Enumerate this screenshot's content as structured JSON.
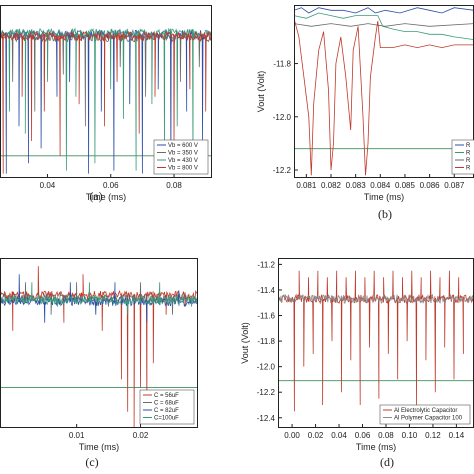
{
  "chart_data": [
    {
      "panel": "(a)",
      "type": "line",
      "xlabel": "Time (ms)",
      "ylabel": "",
      "xlim": [
        0.025,
        0.092
      ],
      "ylim": [
        -12.25,
        -11.08
      ],
      "xticks": [
        0.04,
        0.06,
        0.08
      ],
      "yticks": [],
      "legend_position": "bottom-right",
      "reference_y": -12.1,
      "series": [
        {
          "name": "Vb = 600 V",
          "color": "#2b4ea8",
          "base": -11.28,
          "spikes": [
            [
              0.027,
              -12.22
            ],
            [
              0.031,
              -11.9
            ],
            [
              0.034,
              -12.15
            ],
            [
              0.038,
              -12.05
            ],
            [
              0.043,
              -11.7
            ],
            [
              0.047,
              -11.6
            ],
            [
              0.053,
              -12.22
            ],
            [
              0.057,
              -11.8
            ],
            [
              0.061,
              -12.2
            ],
            [
              0.066,
              -11.75
            ],
            [
              0.07,
              -12.22
            ],
            [
              0.075,
              -11.65
            ],
            [
              0.079,
              -12.18
            ],
            [
              0.084,
              -11.8
            ],
            [
              0.089,
              -12.0
            ]
          ]
        },
        {
          "name": "Vb = 350 V",
          "color": "#6a6a6a",
          "base": -11.3,
          "spikes": [
            [
              0.029,
              -11.6
            ],
            [
              0.036,
              -11.8
            ],
            [
              0.045,
              -11.55
            ],
            [
              0.052,
              -11.9
            ],
            [
              0.063,
              -11.5
            ],
            [
              0.071,
              -11.7
            ],
            [
              0.082,
              -11.6
            ],
            [
              0.088,
              -11.5
            ]
          ]
        },
        {
          "name": "Vb = 430 V",
          "color": "#3a9a78",
          "base": -11.27,
          "spikes": [
            [
              0.028,
              -11.8
            ],
            [
              0.033,
              -11.95
            ],
            [
              0.04,
              -11.6
            ],
            [
              0.046,
              -12.2
            ],
            [
              0.049,
              -11.7
            ],
            [
              0.055,
              -12.15
            ],
            [
              0.06,
              -11.65
            ],
            [
              0.064,
              -11.85
            ],
            [
              0.068,
              -12.2
            ],
            [
              0.073,
              -11.75
            ],
            [
              0.077,
              -12.1
            ],
            [
              0.081,
              -11.9
            ],
            [
              0.086,
              -12.2
            ]
          ]
        },
        {
          "name": "Vb = 800 V",
          "color": "#c0392b",
          "base": -11.29,
          "spikes": [
            [
              0.026,
              -12.22
            ],
            [
              0.032,
              -11.7
            ],
            [
              0.035,
              -12.0
            ],
            [
              0.039,
              -11.8
            ],
            [
              0.044,
              -12.1
            ],
            [
              0.05,
              -11.75
            ],
            [
              0.058,
              -11.9
            ],
            [
              0.062,
              -11.6
            ],
            [
              0.069,
              -11.95
            ],
            [
              0.074,
              -11.7
            ],
            [
              0.08,
              -12.05
            ],
            [
              0.085,
              -11.65
            ],
            [
              0.09,
              -11.8
            ]
          ]
        }
      ]
    },
    {
      "panel": "(b)",
      "type": "line",
      "xlabel": "Time (ms)",
      "ylabel": "Vout (Volt)",
      "xlim": [
        0.0805,
        0.0878
      ],
      "ylim": [
        -12.23,
        -11.58
      ],
      "xticks": [
        0.081,
        0.082,
        0.083,
        0.084,
        0.085,
        0.086,
        0.087
      ],
      "yticks": [
        -11.8,
        -12.0,
        -12.2
      ],
      "legend_position": "bottom-right",
      "legend_entries": [
        "R",
        "R",
        "R",
        "R"
      ],
      "reference_y": -12.12,
      "series": [
        {
          "name": "R",
          "color": "#2b4ea8",
          "points": [
            [
              0.0805,
              -11.6
            ],
            [
              0.0808,
              -11.59
            ],
            [
              0.0811,
              -11.61
            ],
            [
              0.0815,
              -11.59
            ],
            [
              0.082,
              -11.6
            ],
            [
              0.0825,
              -11.6
            ],
            [
              0.083,
              -11.61
            ],
            [
              0.0835,
              -11.59
            ],
            [
              0.0838,
              -11.61
            ],
            [
              0.0842,
              -11.6
            ],
            [
              0.0848,
              -11.61
            ],
            [
              0.0855,
              -11.59
            ],
            [
              0.086,
              -11.6
            ],
            [
              0.0865,
              -11.61
            ],
            [
              0.087,
              -11.59
            ],
            [
              0.0878,
              -11.6
            ]
          ]
        },
        {
          "name": "R",
          "color": "#3a9a78",
          "points": [
            [
              0.0805,
              -11.62
            ],
            [
              0.081,
              -11.63
            ],
            [
              0.0815,
              -11.61
            ],
            [
              0.082,
              -11.62
            ],
            [
              0.0825,
              -11.63
            ],
            [
              0.083,
              -11.62
            ],
            [
              0.0835,
              -11.62
            ],
            [
              0.0839,
              -11.62
            ],
            [
              0.0841,
              -11.66
            ],
            [
              0.0845,
              -11.67
            ],
            [
              0.085,
              -11.68
            ],
            [
              0.0855,
              -11.68
            ],
            [
              0.086,
              -11.69
            ],
            [
              0.0865,
              -11.69
            ],
            [
              0.087,
              -11.7
            ],
            [
              0.0878,
              -11.71
            ]
          ]
        },
        {
          "name": "R",
          "color": "#6a6a6a",
          "points": [
            [
              0.0805,
              -11.65
            ],
            [
              0.0812,
              -11.66
            ],
            [
              0.082,
              -11.65
            ],
            [
              0.0828,
              -11.66
            ],
            [
              0.0835,
              -11.65
            ],
            [
              0.0842,
              -11.66
            ],
            [
              0.085,
              -11.65
            ],
            [
              0.086,
              -11.66
            ],
            [
              0.0878,
              -11.65
            ]
          ]
        },
        {
          "name": "R",
          "color": "#c0392b",
          "points": [
            [
              0.0805,
              -11.63
            ],
            [
              0.0807,
              -11.7
            ],
            [
              0.0809,
              -11.85
            ],
            [
              0.0811,
              -12.0
            ],
            [
              0.0812,
              -12.22
            ],
            [
              0.0813,
              -11.95
            ],
            [
              0.0815,
              -11.75
            ],
            [
              0.0817,
              -11.68
            ],
            [
              0.0819,
              -11.9
            ],
            [
              0.082,
              -12.2
            ],
            [
              0.0821,
              -12.1
            ],
            [
              0.0822,
              -11.8
            ],
            [
              0.0824,
              -11.7
            ],
            [
              0.0826,
              -11.85
            ],
            [
              0.0828,
              -12.05
            ],
            [
              0.0829,
              -11.75
            ],
            [
              0.0831,
              -11.66
            ],
            [
              0.0833,
              -12.0
            ],
            [
              0.0834,
              -12.22
            ],
            [
              0.0835,
              -12.1
            ],
            [
              0.0836,
              -11.85
            ],
            [
              0.0838,
              -11.7
            ],
            [
              0.0839,
              -11.64
            ],
            [
              0.084,
              -11.74
            ],
            [
              0.0845,
              -11.74
            ],
            [
              0.085,
              -11.73
            ],
            [
              0.0855,
              -11.74
            ],
            [
              0.086,
              -11.73
            ],
            [
              0.0865,
              -11.74
            ],
            [
              0.087,
              -11.73
            ],
            [
              0.0878,
              -11.73
            ]
          ]
        }
      ]
    },
    {
      "panel": "(c)",
      "type": "line",
      "xlabel": "Time (ms)",
      "ylabel": "",
      "xlim": [
        -0.002,
        0.029
      ],
      "ylim": [
        -12.2,
        -11.15
      ],
      "xticks": [
        0.01,
        0.02
      ],
      "yticks": [],
      "legend_position": "bottom-right",
      "reference_y": -11.95,
      "series": [
        {
          "name": "C = 56uF",
          "color": "#c0392b",
          "base": -11.38,
          "spikes": [
            [
              0.0,
              -11.6
            ],
            [
              0.004,
              -11.2
            ],
            [
              0.008,
              -11.55
            ],
            [
              0.011,
              -11.25
            ],
            [
              0.014,
              -11.6
            ],
            [
              0.017,
              -11.9
            ],
            [
              0.018,
              -12.1
            ],
            [
              0.019,
              -12.2
            ],
            [
              0.02,
              -11.95
            ],
            [
              0.021,
              -12.15
            ],
            [
              0.022,
              -11.8
            ],
            [
              0.024,
              -11.5
            ],
            [
              0.027,
              -11.45
            ]
          ]
        },
        {
          "name": "C = 68uF",
          "color": "#6a6a6a",
          "base": -11.4,
          "spikes": [
            [
              0.002,
              -11.3
            ],
            [
              0.006,
              -11.5
            ],
            [
              0.01,
              -11.3
            ],
            [
              0.015,
              -11.45
            ],
            [
              0.02,
              -11.3
            ],
            [
              0.025,
              -11.5
            ]
          ]
        },
        {
          "name": "C = 82uF",
          "color": "#2b4ea8",
          "base": -11.42,
          "spikes": [
            [
              0.001,
              -11.25
            ],
            [
              0.005,
              -11.55
            ],
            [
              0.009,
              -11.3
            ],
            [
              0.013,
              -11.5
            ],
            [
              0.016,
              -11.3
            ],
            [
              0.021,
              -11.55
            ],
            [
              0.026,
              -11.35
            ]
          ]
        },
        {
          "name": "C=100uF",
          "color": "#3a9a78",
          "base": -11.41,
          "spikes": [
            [
              0.003,
              -11.3
            ],
            [
              0.007,
              -11.45
            ],
            [
              0.012,
              -11.3
            ],
            [
              0.018,
              -11.5
            ],
            [
              0.023,
              -11.3
            ],
            [
              0.028,
              -11.45
            ]
          ]
        }
      ]
    },
    {
      "panel": "(d)",
      "type": "line",
      "xlabel": "Time (ms)",
      "ylabel": "Vout (Volt)",
      "xlim": [
        -0.012,
        0.155
      ],
      "ylim": [
        -12.48,
        -11.15
      ],
      "xticks": [
        0.0,
        0.02,
        0.04,
        0.06,
        0.08,
        0.1,
        0.12,
        0.14
      ],
      "yticks": [
        -11.2,
        -11.4,
        -11.6,
        -11.8,
        -12.0,
        -12.2,
        -12.4
      ],
      "legend_position": "bottom-right",
      "reference_y": -12.11,
      "series": [
        {
          "name": "Al Electrolytic Capacitor",
          "color": "#c0392b",
          "base": -11.47,
          "spikes": [
            [
              0.002,
              -12.35
            ],
            [
              0.006,
              -11.25
            ],
            [
              0.01,
              -12.0
            ],
            [
              0.014,
              -11.3
            ],
            [
              0.018,
              -11.9
            ],
            [
              0.022,
              -11.25
            ],
            [
              0.026,
              -12.3
            ],
            [
              0.03,
              -11.3
            ],
            [
              0.034,
              -11.8
            ],
            [
              0.038,
              -11.25
            ],
            [
              0.042,
              -12.2
            ],
            [
              0.046,
              -11.3
            ],
            [
              0.05,
              -11.95
            ],
            [
              0.054,
              -11.25
            ],
            [
              0.058,
              -12.3
            ],
            [
              0.062,
              -11.3
            ],
            [
              0.066,
              -11.85
            ],
            [
              0.07,
              -11.25
            ],
            [
              0.074,
              -12.25
            ],
            [
              0.078,
              -11.3
            ],
            [
              0.082,
              -11.9
            ],
            [
              0.086,
              -11.25
            ],
            [
              0.09,
              -12.1
            ],
            [
              0.094,
              -11.3
            ],
            [
              0.098,
              -11.8
            ],
            [
              0.102,
              -11.25
            ],
            [
              0.106,
              -12.3
            ],
            [
              0.11,
              -11.3
            ],
            [
              0.114,
              -11.95
            ],
            [
              0.118,
              -11.25
            ],
            [
              0.122,
              -12.2
            ],
            [
              0.126,
              -11.3
            ],
            [
              0.13,
              -11.85
            ],
            [
              0.134,
              -11.25
            ],
            [
              0.138,
              -12.1
            ],
            [
              0.142,
              -11.3
            ],
            [
              0.146,
              -11.9
            ]
          ]
        },
        {
          "name": "Al Polymer Capacitor 100",
          "color": "#8a8a8a",
          "base": -11.47,
          "spikes": []
        }
      ]
    }
  ],
  "captions": [
    "(a)",
    "(b)",
    "(c)",
    "(d)"
  ]
}
